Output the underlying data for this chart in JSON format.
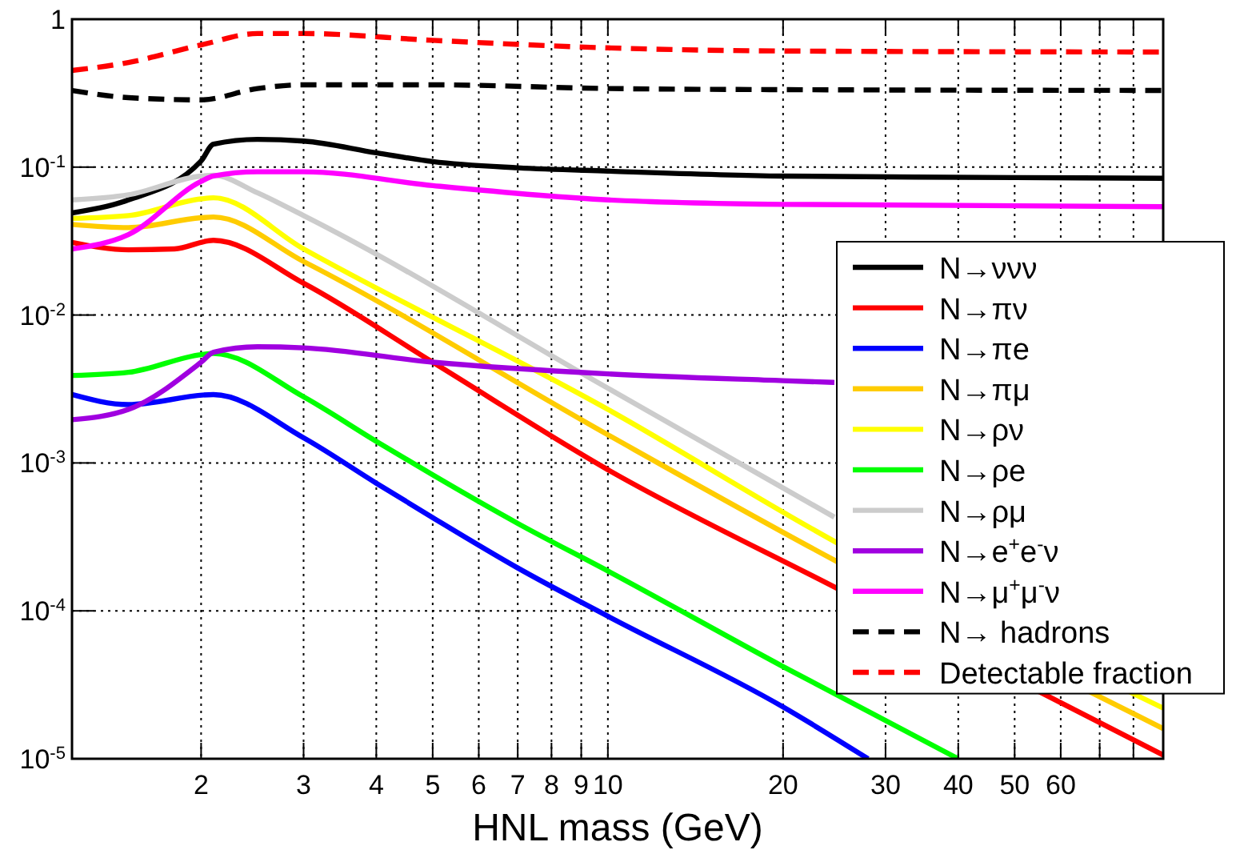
{
  "chart_data": {
    "type": "line",
    "xlabel": "HNL mass (GeV)",
    "log": "xy",
    "grid": true,
    "legend": "bottom right",
    "xlim": [
      1.2,
      90
    ],
    "ylim": [
      1e-05,
      1
    ],
    "xticks": [
      2,
      3,
      4,
      5,
      6,
      7,
      8,
      9,
      10,
      20,
      30,
      40,
      50,
      60,
      {
        "value": 70,
        "label": null
      },
      {
        "value": 80,
        "label": null
      }
    ],
    "yticks": [
      {
        "value": 1e-05,
        "label": "10$^{-5}$"
      },
      {
        "value": 0.0001,
        "label": "10$^{-4}$"
      },
      {
        "value": 0.001,
        "label": "10$^{-3}$"
      },
      {
        "value": 0.01,
        "label": "10$^{-2}$"
      },
      {
        "value": 0.1,
        "label": "10$^{-1}$"
      },
      1
    ],
    "series": [
      {
        "name": "N→ννν",
        "color": "#000000",
        "x": [
          1.2,
          1.5,
          2,
          2.1,
          2.5,
          3,
          4,
          5,
          7,
          10,
          20,
          50,
          90
        ],
        "values": [
          0.049,
          0.06,
          0.11,
          0.143,
          0.154,
          0.15,
          0.125,
          0.109,
          0.099,
          0.094,
          0.087,
          0.085,
          0.084
        ]
      },
      {
        "name": "N→πν",
        "color": "#ff0000",
        "x": [
          1.2,
          1.5,
          1.8,
          2.1,
          3,
          5,
          10,
          24.5,
          90
        ],
        "values": [
          0.031,
          0.0276,
          0.028,
          0.032,
          0.0164,
          0.0048,
          0.0009,
          0.000145,
          1.06e-05
        ]
      },
      {
        "name": "N→πe",
        "color": "#0000ff",
        "x": [
          1.2,
          1.5,
          2.1,
          3,
          4,
          5,
          7,
          10,
          20,
          28
        ],
        "values": [
          0.0029,
          0.00248,
          0.0029,
          0.00148,
          0.00073,
          0.000427,
          0.000195,
          9.2e-05,
          2.24e-05,
          1e-05
        ]
      },
      {
        "name": "N→πμ",
        "color": "#ffcc00",
        "x": [
          1.2,
          1.5,
          2,
          2.1,
          3,
          10,
          24.5,
          90
        ],
        "values": [
          0.041,
          0.039,
          0.0455,
          0.046,
          0.023,
          0.00155,
          0.00022,
          1.6e-05
        ]
      },
      {
        "name": "N→ρν",
        "color": "#ffff00",
        "x": [
          1.2,
          1.5,
          2,
          2.1,
          3,
          10,
          24.5,
          90
        ],
        "values": [
          0.045,
          0.047,
          0.061,
          0.062,
          0.028,
          0.0023,
          0.000295,
          2.2e-05
        ]
      },
      {
        "name": "N→ρe",
        "color": "#00ff00",
        "x": [
          1.2,
          1.5,
          2,
          2.1,
          3,
          4,
          5,
          7,
          10,
          20,
          40
        ],
        "values": [
          0.0039,
          0.0041,
          0.0054,
          0.0055,
          0.0028,
          0.0014,
          0.00083,
          0.00039,
          0.000186,
          4.2e-05,
          1e-05
        ]
      },
      {
        "name": "N→ρμ",
        "color": "#cccccc",
        "x": [
          1.2,
          1.5,
          2,
          2.1,
          2.5,
          3,
          10,
          24.5
        ],
        "values": [
          0.06,
          0.065,
          0.087,
          0.088,
          0.067,
          0.047,
          0.0032,
          0.00043
        ]
      },
      {
        "name": "N→e$^{+}$e$^{-}$ν",
        "color": "#a000e0",
        "x": [
          1.2,
          1.5,
          2,
          2.1,
          2.5,
          3,
          5,
          10,
          20,
          24.5
        ],
        "values": [
          0.00196,
          0.0023,
          0.0048,
          0.0056,
          0.0061,
          0.006,
          0.0048,
          0.004,
          0.0036,
          0.0035
        ]
      },
      {
        "name": "N→μ$^{+}$μ$^{-}$ν",
        "color": "#ff00ff",
        "x": [
          1.2,
          1.5,
          2,
          2.1,
          2.5,
          3,
          5,
          10,
          20,
          90
        ],
        "values": [
          0.028,
          0.035,
          0.08,
          0.087,
          0.093,
          0.093,
          0.075,
          0.06,
          0.056,
          0.054
        ]
      },
      {
        "name": "N→ hadrons",
        "color": "#000000",
        "line_style": "dashed",
        "x": [
          1.2,
          1.5,
          2,
          2.5,
          3,
          5,
          10,
          20,
          90
        ],
        "values": [
          0.33,
          0.295,
          0.285,
          0.34,
          0.36,
          0.36,
          0.34,
          0.334,
          0.33
        ]
      },
      {
        "name": "Detectable fraction",
        "color": "#ff0000",
        "line_style": "dashed",
        "x": [
          1.2,
          1.5,
          2,
          2.5,
          3,
          5,
          10,
          20,
          90
        ],
        "values": [
          0.45,
          0.51,
          0.67,
          0.8,
          0.8,
          0.72,
          0.64,
          0.61,
          0.6
        ]
      }
    ]
  }
}
